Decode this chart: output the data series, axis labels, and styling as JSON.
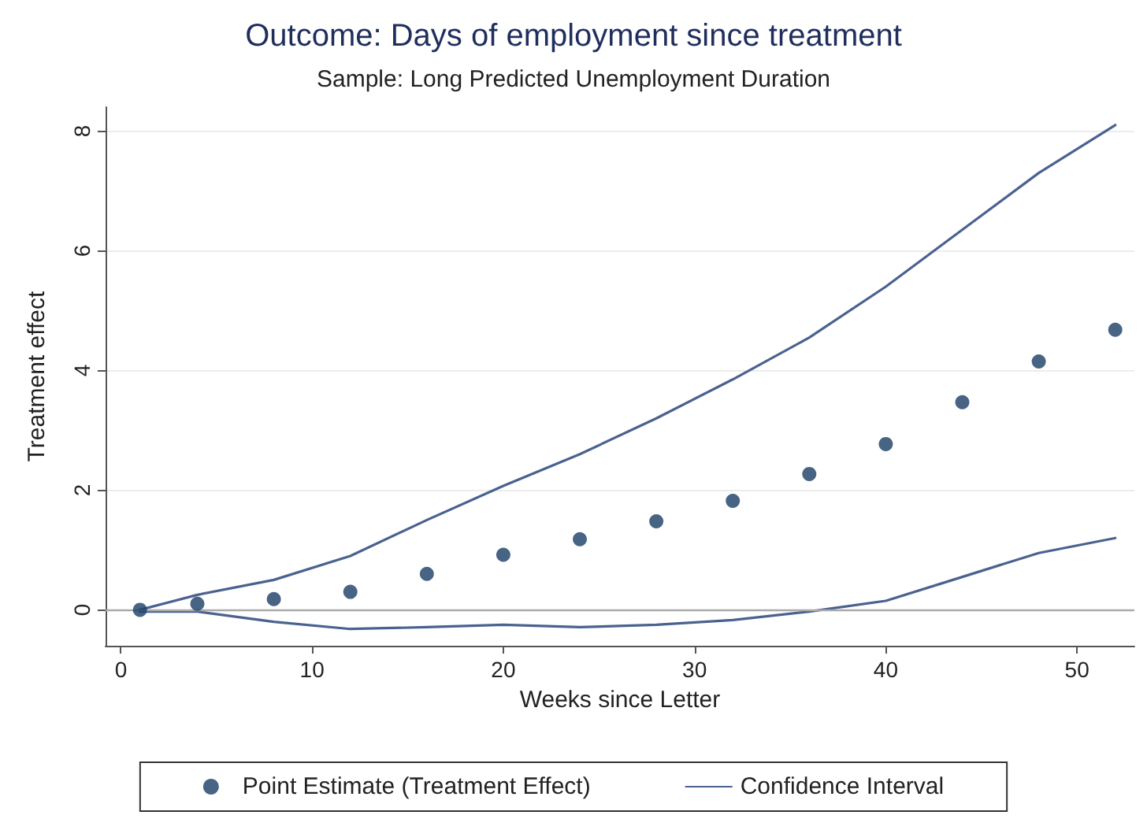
{
  "chart_data": {
    "type": "scatter",
    "title": "Outcome: Days of employment since treatment",
    "subtitle": "Sample: Long Predicted Unemployment Duration",
    "xlabel": "Weeks since Letter",
    "ylabel": "Treatment effect",
    "x": [
      1,
      4,
      8,
      12,
      16,
      20,
      24,
      28,
      32,
      36,
      40,
      44,
      48,
      52
    ],
    "series": [
      {
        "name": "Point Estimate (Treatment Effect)",
        "marker": "circle",
        "color": "#1a3d66",
        "values": [
          0,
          0.1,
          0.18,
          0.3,
          0.6,
          0.92,
          1.18,
          1.48,
          1.82,
          2.27,
          2.77,
          3.47,
          4.15,
          4.68
        ]
      },
      {
        "name": "Confidence Interval",
        "type": "line",
        "line_style": "solid",
        "color": "#4a6290",
        "values": [
          0,
          0.25,
          0.5,
          0.9,
          1.5,
          2.07,
          2.6,
          3.2,
          3.85,
          4.55,
          5.4,
          6.35,
          7.3,
          8.1
        ]
      },
      {
        "type": "line",
        "line_style": "solid",
        "color": "#4a6290",
        "values": [
          -0.03,
          -0.03,
          -0.2,
          -0.32,
          -0.29,
          -0.25,
          -0.29,
          -0.25,
          -0.17,
          -0.03,
          0.15,
          0.55,
          0.95,
          1.2
        ]
      }
    ],
    "xlim": [
      -0.8,
      53
    ],
    "xticks": [
      0,
      10,
      20,
      30,
      40,
      50
    ],
    "ylim": [
      -0.6,
      8.4
    ],
    "yticks": [
      0,
      2,
      4,
      6,
      8
    ],
    "grid": "y",
    "legend": "bottom",
    "ref_lines": [
      {
        "axis": "y",
        "value": 0,
        "color": "#aaaaaa"
      }
    ]
  }
}
